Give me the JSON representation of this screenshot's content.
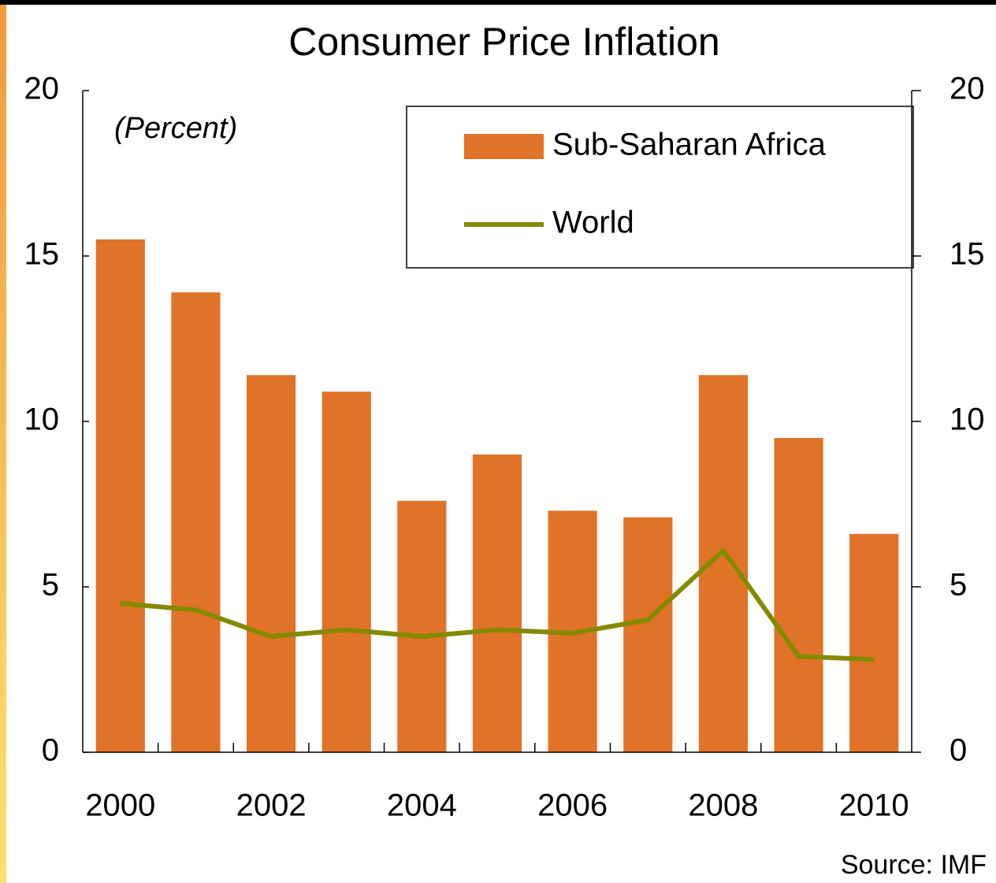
{
  "chart_data": {
    "type": "bar",
    "title": "Consumer Price Inflation",
    "annotation": "(Percent)",
    "source": "Source: IMF",
    "categories": [
      "2000",
      null,
      "2002",
      null,
      "2004",
      null,
      "2006",
      null,
      "2008",
      null,
      "2010"
    ],
    "series": [
      {
        "name": "Sub-Saharan Africa",
        "type": "bar",
        "color": "#e07327",
        "values": [
          15.5,
          13.9,
          11.4,
          10.9,
          7.6,
          9.0,
          7.3,
          7.1,
          11.4,
          9.5,
          6.6
        ]
      },
      {
        "name": "World",
        "type": "line",
        "color": "#848a00",
        "values": [
          4.5,
          4.3,
          3.5,
          3.7,
          3.5,
          3.7,
          3.6,
          4.0,
          6.1,
          2.9,
          2.8
        ]
      }
    ],
    "ylim": [
      0,
      20
    ],
    "yticks": [
      0,
      5,
      10,
      15,
      20
    ],
    "y2lim": [
      0,
      20
    ],
    "y2ticks": [
      0,
      5,
      10,
      15,
      20
    ],
    "legend": "top-right",
    "grid": false
  }
}
